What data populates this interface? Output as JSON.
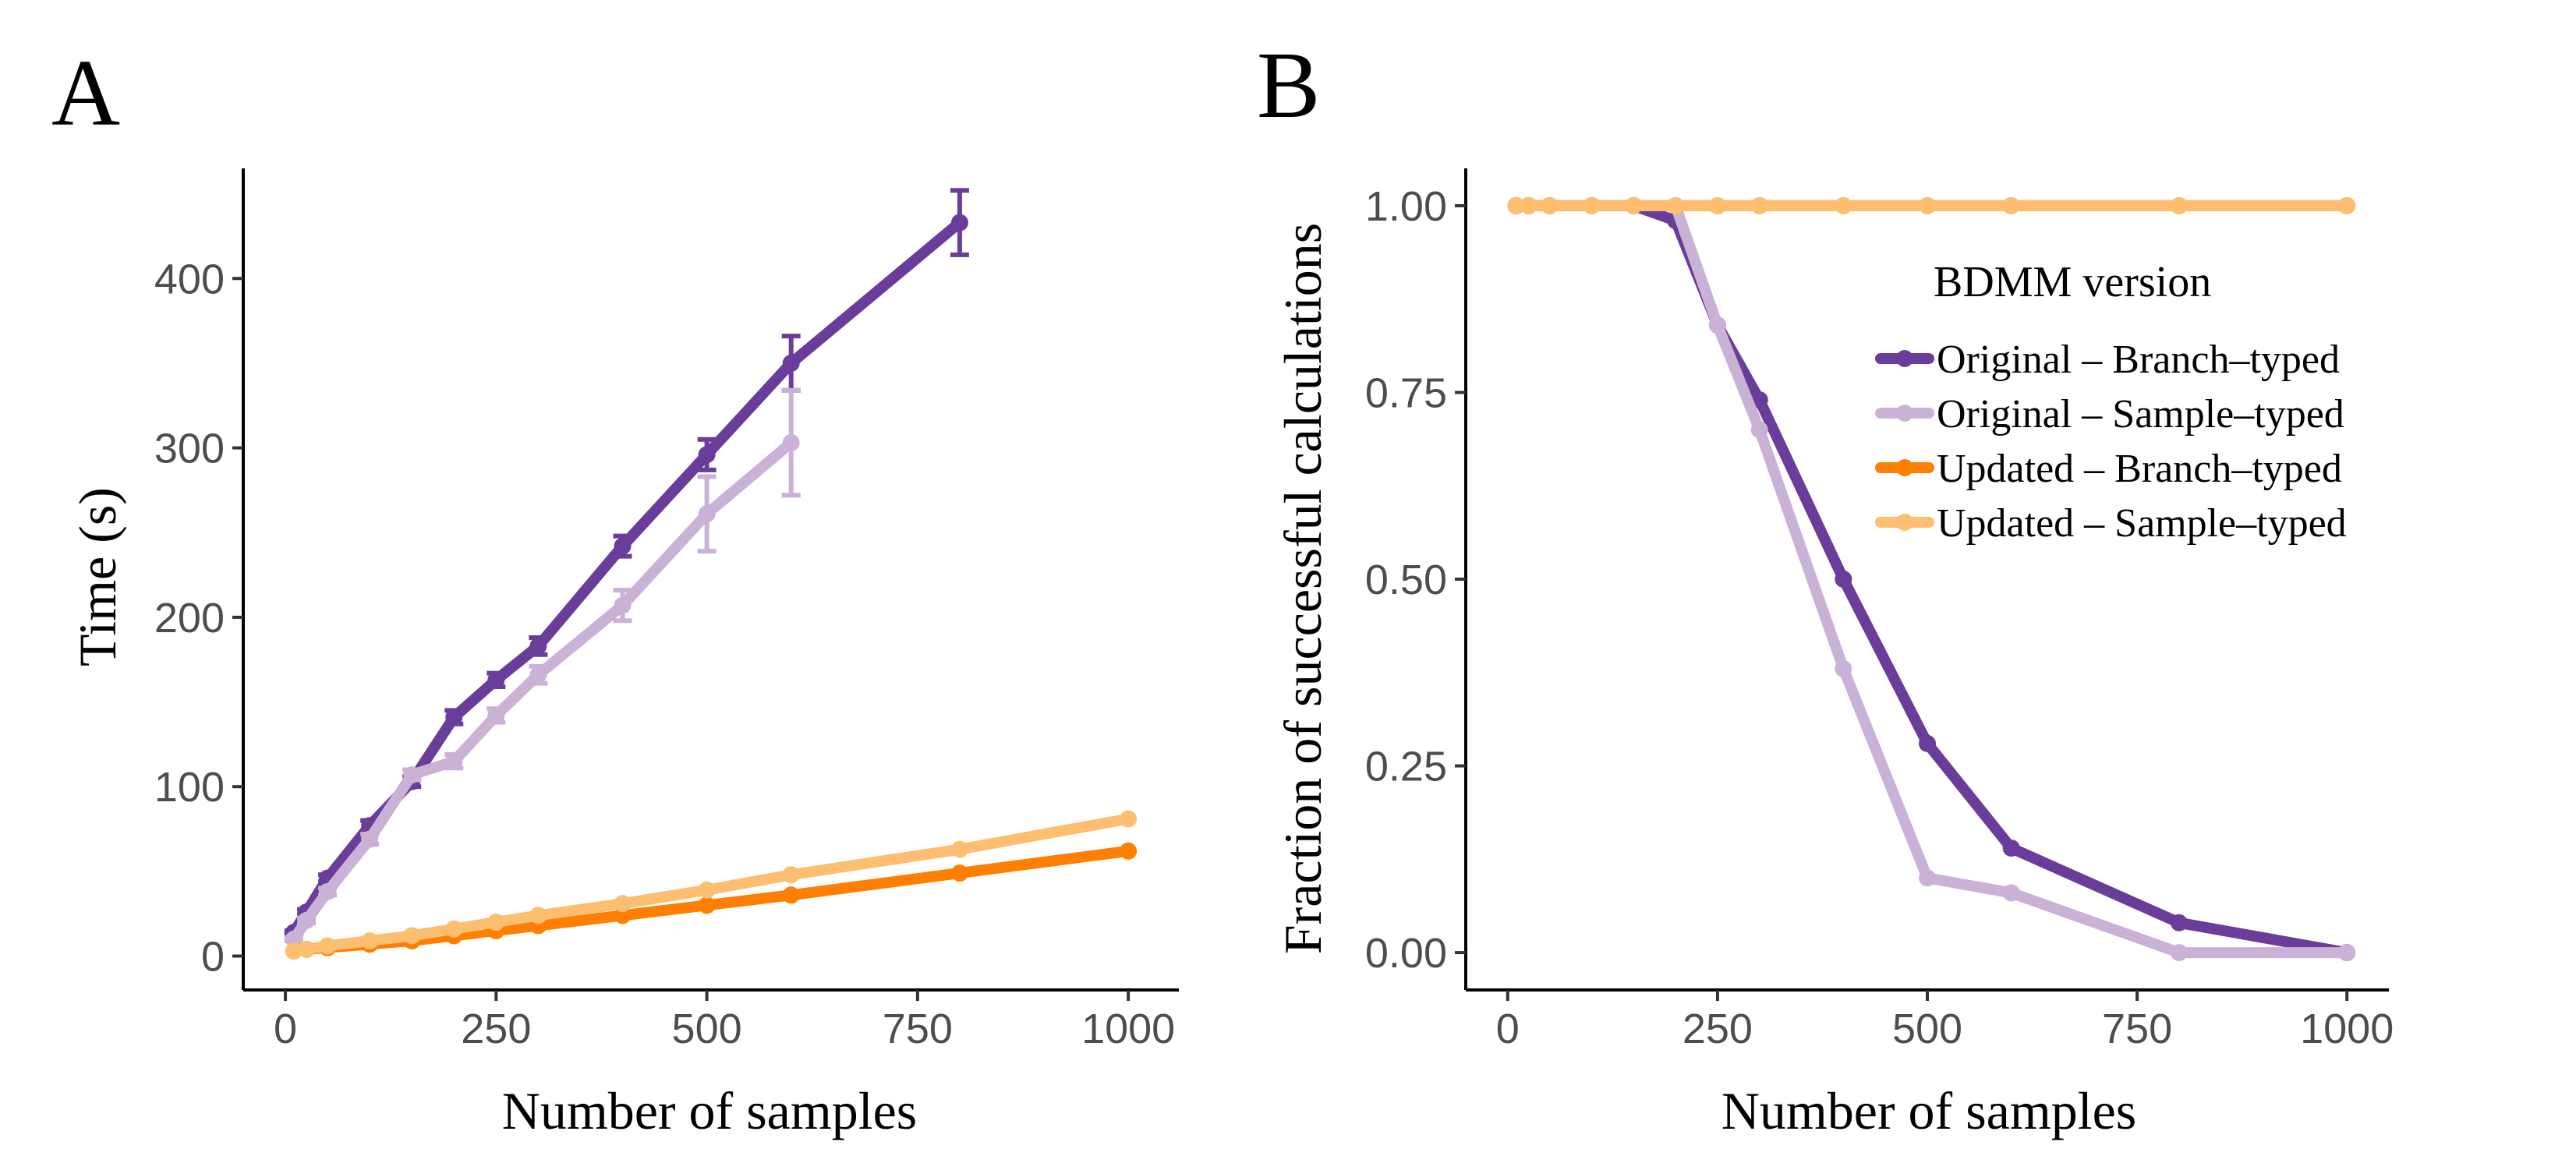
{
  "chart_data": [
    {
      "panel": "A",
      "type": "line",
      "xlabel": "Number of samples",
      "ylabel": "Time (s)",
      "xlim": [
        -50,
        1060
      ],
      "ylim": [
        -20,
        465
      ],
      "xticks": [
        0,
        250,
        500,
        750,
        1000
      ],
      "yticks": [
        0,
        100,
        200,
        300,
        400
      ],
      "grid": false,
      "series": [
        {
          "name": "Original - Branch-typed",
          "color": "#6a3d9a",
          "x": [
            10,
            25,
            50,
            100,
            150,
            200,
            250,
            300,
            400,
            500,
            600,
            800
          ],
          "y": [
            14,
            26,
            46,
            77,
            103,
            141,
            163,
            183,
            242,
            296,
            350,
            433
          ],
          "err": [
            1,
            1.5,
            2,
            3,
            3,
            4,
            4,
            5,
            6,
            9,
            16,
            19
          ]
        },
        {
          "name": "Original - Sample-typed",
          "color": "#cab2d6",
          "x": [
            10,
            25,
            50,
            100,
            150,
            200,
            250,
            300,
            400,
            500,
            600
          ],
          "y": [
            10,
            21,
            38,
            69,
            107,
            115,
            142,
            166,
            207,
            261,
            303
          ],
          "err": [
            1,
            1.5,
            2,
            3,
            3,
            4,
            4,
            5,
            9,
            22,
            31
          ]
        },
        {
          "name": "Updated - Branch-typed",
          "color": "#ff7f00",
          "x": [
            10,
            25,
            50,
            100,
            150,
            200,
            250,
            300,
            400,
            500,
            600,
            800,
            1000
          ],
          "y": [
            3,
            4,
            5,
            7,
            9,
            12,
            15,
            18,
            24,
            30,
            36,
            49,
            62
          ],
          "err": [
            0,
            0,
            0,
            0,
            0,
            0,
            0,
            0,
            0,
            0,
            0,
            0,
            0
          ]
        },
        {
          "name": "Updated - Sample-typed",
          "color": "#fdbf6f",
          "x": [
            10,
            25,
            50,
            100,
            150,
            200,
            250,
            300,
            400,
            500,
            600,
            800,
            1000
          ],
          "y": [
            3,
            4,
            6,
            9,
            12,
            16,
            20,
            24,
            31,
            39,
            48,
            63,
            81
          ],
          "err": [
            0,
            0,
            0,
            0,
            0,
            0,
            0,
            0,
            0,
            0,
            0,
            0,
            0
          ]
        }
      ]
    },
    {
      "panel": "B",
      "type": "line",
      "xlabel": "Number of samples",
      "ylabel": "Fraction of successful calculations",
      "xlim": [
        -50,
        1050
      ],
      "ylim": [
        -0.05,
        1.05
      ],
      "xticks": [
        0,
        250,
        500,
        750,
        1000
      ],
      "yticks": [
        0.0,
        0.25,
        0.5,
        0.75,
        1.0
      ],
      "ytick_labels": [
        "0.00",
        "0.25",
        "0.50",
        "0.75",
        "1.00"
      ],
      "grid": false,
      "legend": {
        "title": "BDMM version",
        "position": "right"
      },
      "series": [
        {
          "name": "Original - Branch-typed",
          "label": "Original – Branch–typed",
          "color": "#6a3d9a",
          "x": [
            10,
            25,
            50,
            100,
            150,
            200,
            250,
            300,
            400,
            500,
            600,
            800,
            1000
          ],
          "y": [
            1.0,
            1.0,
            1.0,
            1.0,
            1.0,
            0.98,
            0.84,
            0.74,
            0.5,
            0.28,
            0.14,
            0.04,
            0.0
          ]
        },
        {
          "name": "Original - Sample-typed",
          "label": "Original – Sample–typed",
          "color": "#cab2d6",
          "x": [
            10,
            25,
            50,
            100,
            150,
            200,
            250,
            300,
            400,
            500,
            600,
            800,
            1000
          ],
          "y": [
            1.0,
            1.0,
            1.0,
            1.0,
            1.0,
            1.0,
            0.84,
            0.7,
            0.38,
            0.1,
            0.08,
            0.0,
            0.0
          ]
        },
        {
          "name": "Updated - Branch-typed",
          "label": "Updated – Branch–typed",
          "color": "#ff7f00",
          "x": [
            10,
            25,
            50,
            100,
            150,
            200,
            250,
            300,
            400,
            500,
            600,
            800,
            1000
          ],
          "y": [
            1.0,
            1.0,
            1.0,
            1.0,
            1.0,
            1.0,
            1.0,
            1.0,
            1.0,
            1.0,
            1.0,
            1.0,
            1.0
          ]
        },
        {
          "name": "Updated - Sample-typed",
          "label": "Updated – Sample–typed",
          "color": "#fdbf6f",
          "x": [
            10,
            25,
            50,
            100,
            150,
            200,
            250,
            300,
            400,
            500,
            600,
            800,
            1000
          ],
          "y": [
            1.0,
            1.0,
            1.0,
            1.0,
            1.0,
            1.0,
            1.0,
            1.0,
            1.0,
            1.0,
            1.0,
            1.0,
            1.0
          ]
        }
      ]
    }
  ]
}
